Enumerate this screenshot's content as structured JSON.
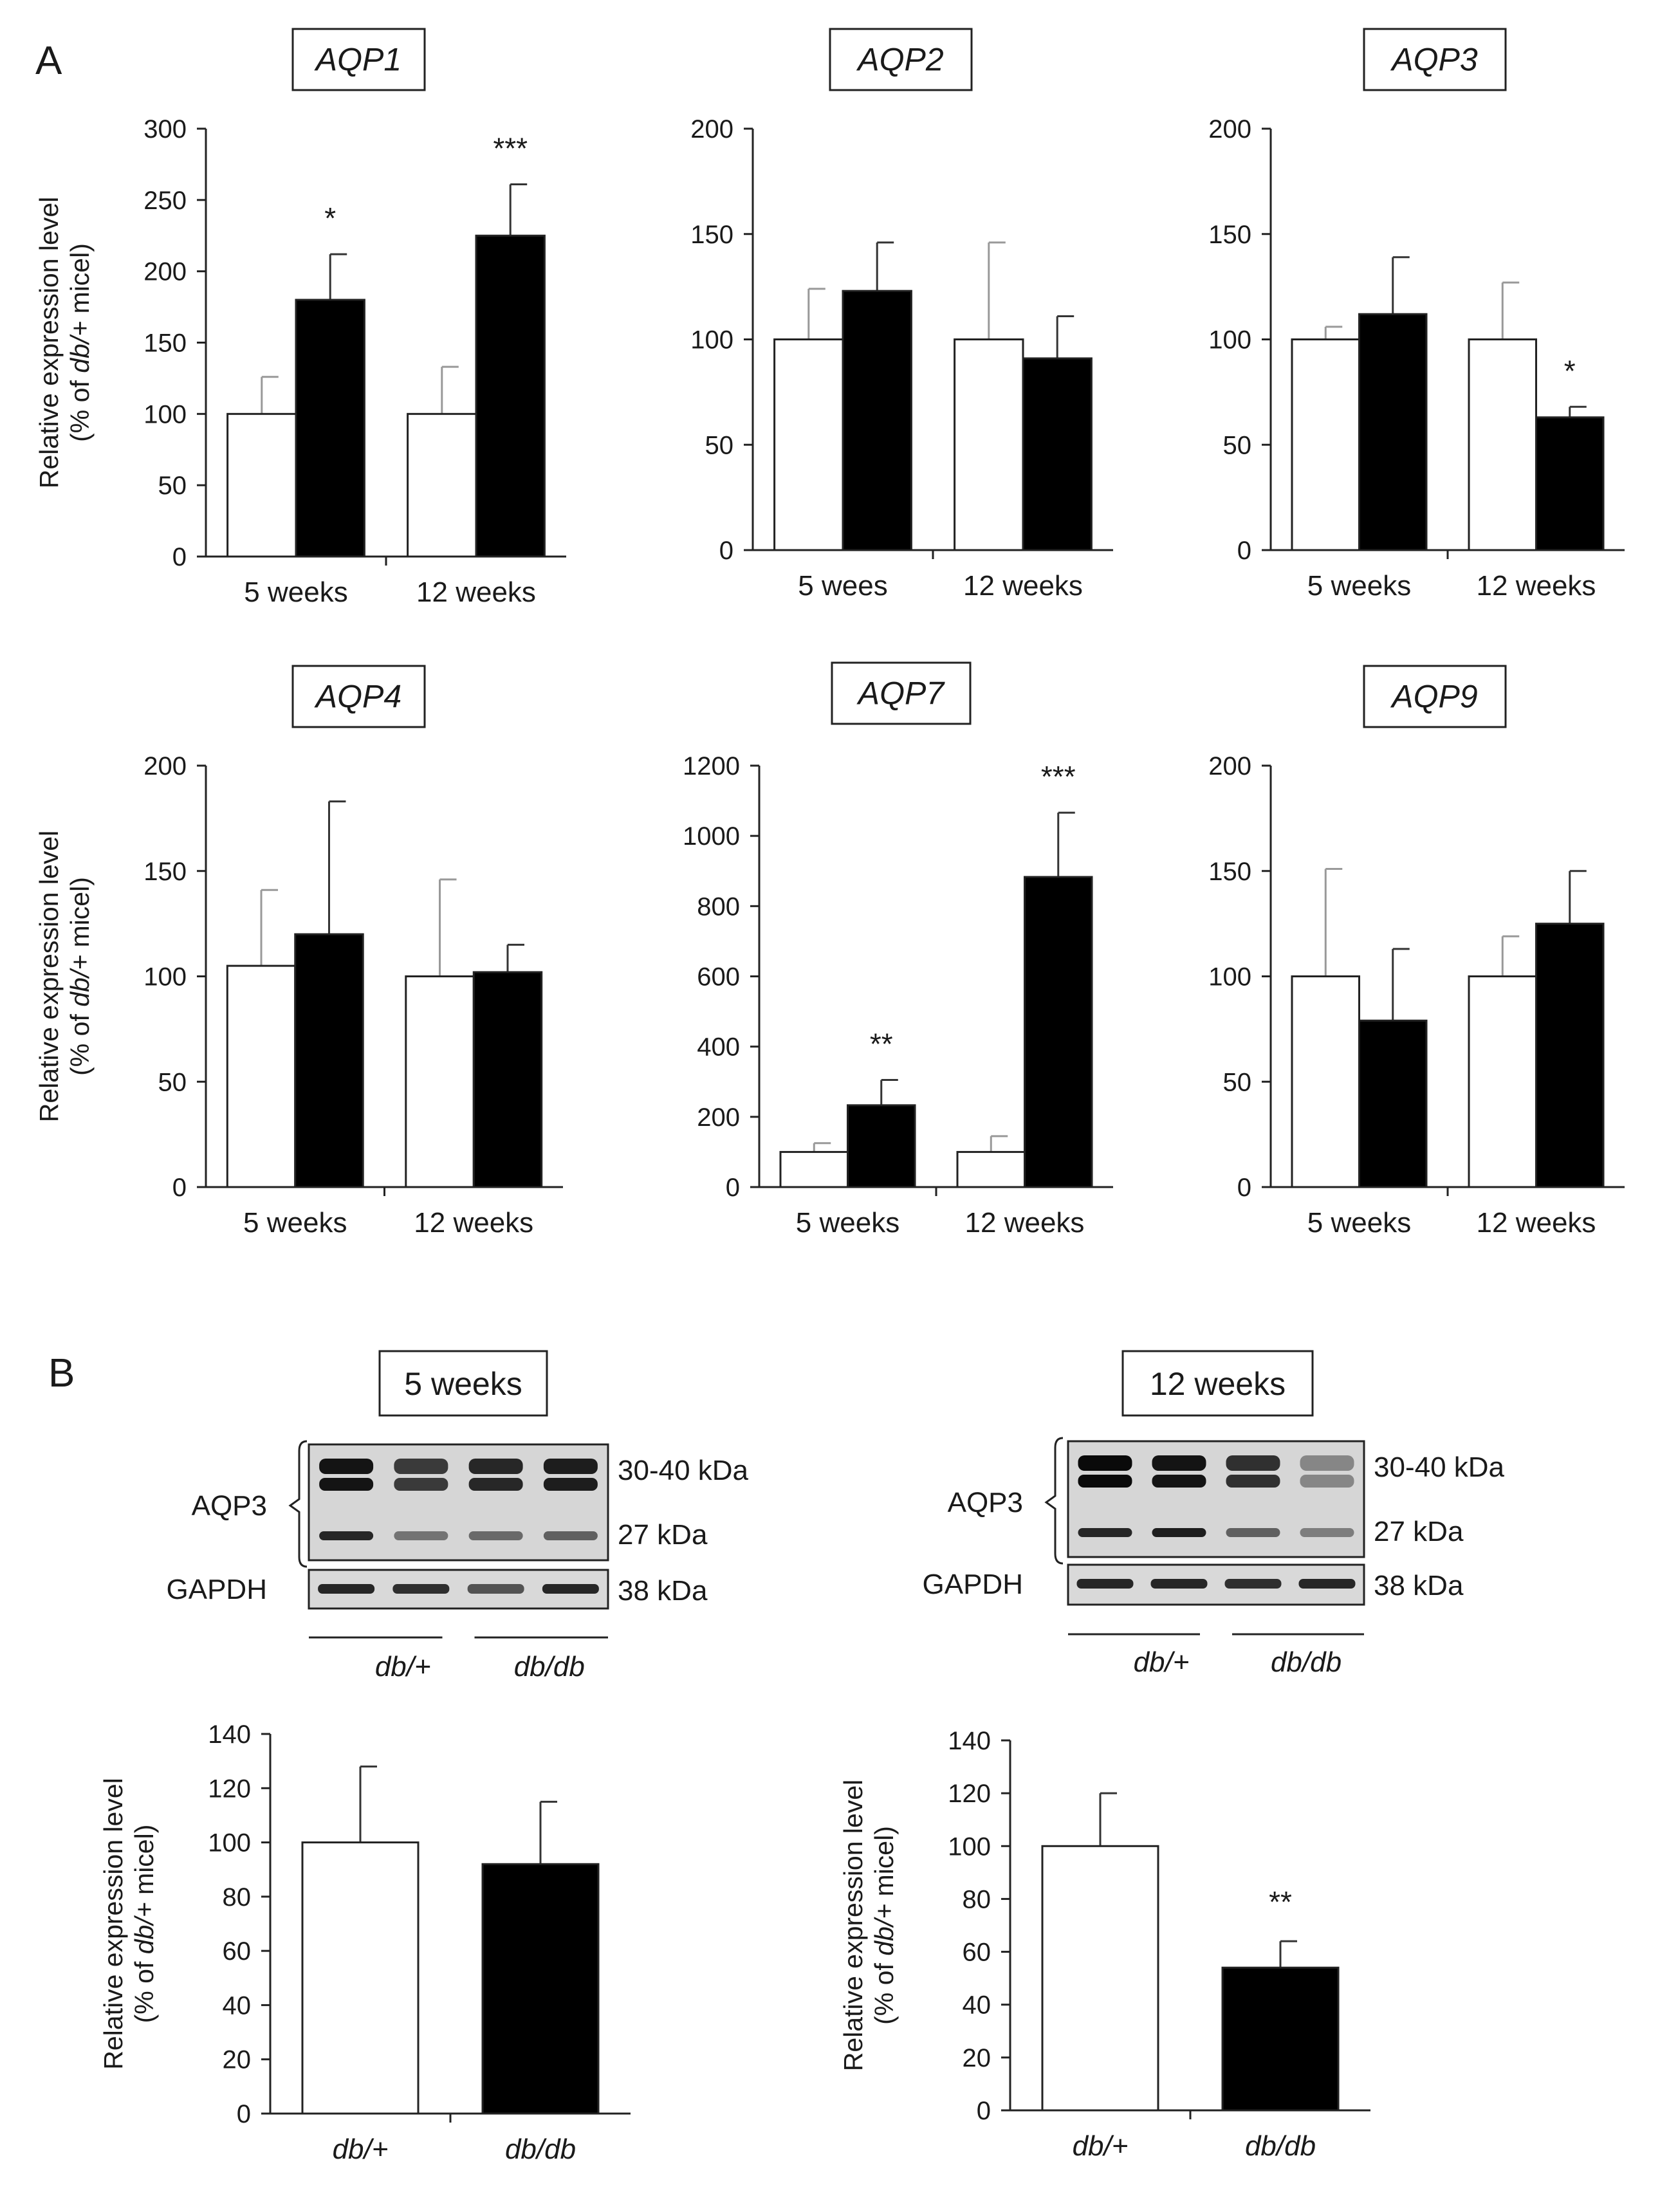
{
  "panel_labels": {
    "a": "A",
    "b": "B"
  },
  "legend_groups": [
    "db/+",
    "db/db"
  ],
  "colors": {
    "control_fill": "#ffffff",
    "treated_fill": "#000000",
    "axis": "#222222",
    "control_error": "#999999"
  },
  "y_axis_label": {
    "line1": "Relative expression level",
    "line2": "(% of db/+ micel)"
  },
  "chart_data": [
    {
      "type": "bar",
      "title": "AQP1",
      "categories": [
        "5 weeks",
        "12 weeks"
      ],
      "series": [
        {
          "name": "db/+",
          "values": [
            100,
            100
          ],
          "errors": [
            26,
            33
          ]
        },
        {
          "name": "db/db",
          "values": [
            180,
            225
          ],
          "errors": [
            32,
            36
          ]
        }
      ],
      "significance": [
        "*",
        "***"
      ],
      "ylim": [
        0,
        300
      ],
      "yticks": [
        0,
        50,
        100,
        150,
        200,
        250,
        300
      ]
    },
    {
      "type": "bar",
      "title": "AQP2",
      "categories": [
        "5 wees",
        "12 weeks"
      ],
      "series": [
        {
          "name": "db/+",
          "values": [
            100,
            100
          ],
          "errors": [
            24,
            46
          ]
        },
        {
          "name": "db/db",
          "values": [
            123,
            91
          ],
          "errors": [
            23,
            20
          ]
        }
      ],
      "significance": [
        "",
        ""
      ],
      "ylim": [
        0,
        200
      ],
      "yticks": [
        0,
        50,
        100,
        150,
        200
      ]
    },
    {
      "type": "bar",
      "title": "AQP3",
      "categories": [
        "5 weeks",
        "12 weeks"
      ],
      "series": [
        {
          "name": "db/+",
          "values": [
            100,
            100
          ],
          "errors": [
            6,
            27
          ]
        },
        {
          "name": "db/db",
          "values": [
            112,
            63
          ],
          "errors": [
            27,
            5
          ]
        }
      ],
      "significance": [
        "",
        "*"
      ],
      "ylim": [
        0,
        200
      ],
      "yticks": [
        0,
        50,
        100,
        150,
        200
      ]
    },
    {
      "type": "bar",
      "title": "AQP4",
      "categories": [
        "5 weeks",
        "12 weeks"
      ],
      "series": [
        {
          "name": "db/+",
          "values": [
            105,
            100
          ],
          "errors": [
            36,
            46
          ]
        },
        {
          "name": "db/db",
          "values": [
            120,
            102
          ],
          "errors": [
            63,
            13
          ]
        }
      ],
      "significance": [
        "",
        ""
      ],
      "ylim": [
        0,
        200
      ],
      "yticks": [
        0,
        50,
        100,
        150,
        200
      ]
    },
    {
      "type": "bar",
      "title": "AQP7",
      "categories": [
        "5 weeks",
        "12 weeks"
      ],
      "series": [
        {
          "name": "db/+",
          "values": [
            100,
            100
          ],
          "errors": [
            25,
            45
          ]
        },
        {
          "name": "db/db",
          "values": [
            233,
            883
          ],
          "errors": [
            72,
            183
          ]
        }
      ],
      "significance": [
        "**",
        "***"
      ],
      "ylim": [
        0,
        1200
      ],
      "yticks": [
        0,
        200,
        400,
        600,
        800,
        1000,
        1200
      ]
    },
    {
      "type": "bar",
      "title": "AQP9",
      "categories": [
        "5 weeks",
        "12 weeks"
      ],
      "series": [
        {
          "name": "db/+",
          "values": [
            100,
            100
          ],
          "errors": [
            51,
            19
          ]
        },
        {
          "name": "db/db",
          "values": [
            79,
            125
          ],
          "errors": [
            34,
            25
          ]
        }
      ],
      "significance": [
        "",
        ""
      ],
      "ylim": [
        0,
        200
      ],
      "yticks": [
        0,
        50,
        100,
        150,
        200
      ]
    },
    {
      "type": "bar",
      "title": "5 weeks",
      "categories": [
        "db/+",
        "db/db"
      ],
      "values": [
        100,
        92
      ],
      "errors": [
        28,
        23
      ],
      "significance": [
        "",
        ""
      ],
      "ylim": [
        0,
        140
      ],
      "yticks": [
        0,
        20,
        40,
        60,
        80,
        100,
        120,
        140
      ]
    },
    {
      "type": "bar",
      "title": "12 weeks",
      "categories": [
        "db/+",
        "db/db"
      ],
      "values": [
        100,
        54
      ],
      "errors": [
        20,
        10
      ],
      "significance": [
        "",
        "**"
      ],
      "ylim": [
        0,
        140
      ],
      "yticks": [
        0,
        20,
        40,
        60,
        80,
        100,
        120,
        140
      ]
    }
  ],
  "western_blots": [
    {
      "title": "5 weeks",
      "protein": "AQP3",
      "loading_control": "GAPDH",
      "markers": [
        "30-40 kDa",
        "27 kDa",
        "38 kDa"
      ],
      "groups": [
        "db/+",
        "db/db"
      ],
      "upper_band_intensity": [
        0.95,
        0.75,
        0.85,
        0.9
      ],
      "lower_band_intensity": [
        0.9,
        0.5,
        0.55,
        0.6
      ],
      "gapdh_intensity": [
        0.9,
        0.85,
        0.65,
        0.9
      ]
    },
    {
      "title": "12 weeks",
      "protein": "AQP3",
      "loading_control": "GAPDH",
      "markers": [
        "30-40 kDa",
        "27 kDa",
        "38 kDa"
      ],
      "groups": [
        "db/+",
        "db/db"
      ],
      "upper_band_intensity": [
        1.0,
        0.95,
        0.8,
        0.35
      ],
      "lower_band_intensity": [
        0.9,
        0.95,
        0.6,
        0.45
      ],
      "gapdh_intensity": [
        0.9,
        0.9,
        0.85,
        0.9
      ]
    }
  ]
}
